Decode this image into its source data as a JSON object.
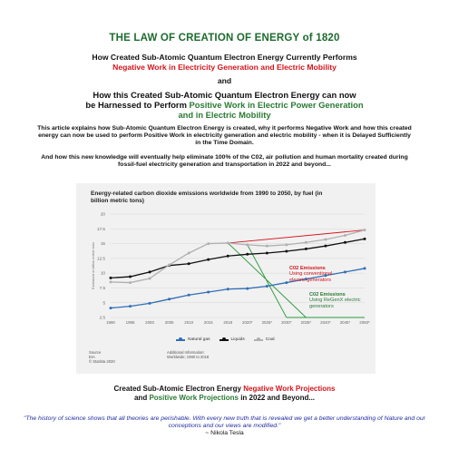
{
  "page": {
    "title": "THE LAW OF CREATION OF ENERGY of 1820",
    "heading1_line1": "How Created Sub-Atomic Quantum Electron Energy Currently Performs",
    "heading1_line2": "Negative Work in Electricity Generation and Electric Mobility",
    "and_word": "and",
    "heading2_line1": "How this Created Sub-Atomic Quantum Electron Energy can now",
    "heading2_line2_black": "be Harnessed to Perform ",
    "heading2_line2_green": "Positive Work in Electric Power Generation",
    "heading2_line3": "and in Electric Mobility",
    "paragraph1": "This article explains how Sub-Atomic Quantum Electron Energy is created, why it performs Negative Work and how this created energy can now be used to perform Positive Work in electricity generation and electric mobility - when it is Delayed Sufficiently in the Time Domain.",
    "paragraph2": "And how this new knowledge will eventually help eliminate 100% of the C02, air pollution and human mortality created during fossil-fuel electricity generation and transportation in 2022 and beyond...",
    "caption_line1_black": "Created Sub-Atomic Electron Energy ",
    "caption_line1_red": "Negative Work Projections",
    "caption_line2_black1": "and ",
    "caption_line2_green": "Positive Work Projections",
    "caption_line2_black2": " in 2022 and Beyond...",
    "quote_text": "\"The history of science shows that all theories are perishable. With every new truth that is revealed we get a better understanding of Nature and our conceptions and our views are modified.\"",
    "quote_author": "~ Nikola Tesla"
  },
  "chart_data": {
    "type": "line",
    "title": "Energy-related carbon dioxide emissions worldwide from 1990 to 2050, by fuel (in billion metric tons)",
    "ylabel": "Emissions in billion metric tons",
    "ylim": [
      2.5,
      20
    ],
    "yticks": [
      "20",
      "17.5",
      "15",
      "12.5",
      "10",
      "7.5",
      "5",
      "2.5"
    ],
    "categories": [
      "1990",
      "1995",
      "2000",
      "2005",
      "2010",
      "2015",
      "2018",
      "2020*",
      "2025*",
      "2030*",
      "2035*",
      "2040*",
      "2045*",
      "2050*"
    ],
    "series": [
      {
        "name": "Natural gas",
        "color": "#2f6fb6",
        "values": [
          4.1,
          4.4,
          4.9,
          5.6,
          6.3,
          6.8,
          7.3,
          7.4,
          7.8,
          8.4,
          9.0,
          9.6,
          10.2,
          10.8
        ]
      },
      {
        "name": "Liquids",
        "color": "#111111",
        "values": [
          9.2,
          9.4,
          10.2,
          11.3,
          11.6,
          12.3,
          12.9,
          13.2,
          13.4,
          13.7,
          14.1,
          14.6,
          15.2,
          15.8
        ]
      },
      {
        "name": "Coal",
        "color": "#b0b0b0",
        "values": [
          8.5,
          8.4,
          9.1,
          11.4,
          13.4,
          15.0,
          15.1,
          14.8,
          14.6,
          14.8,
          15.2,
          15.7,
          16.4,
          17.3
        ]
      }
    ],
    "legend_placement": "bottom",
    "source_label": "Source",
    "source_lines": [
      "EIA",
      "© Statista 2020"
    ],
    "additional_info_label": "Additional Information:",
    "additional_info_lines": [
      "Worldwide; 1990 to 2018"
    ],
    "overlay": {
      "red_label_line1": "C02  Emissions",
      "red_label_line2": "Using conventional",
      "red_label_line3": "electric generators",
      "green_label_line1": "C02  Emissions",
      "green_label_line2": "Using ReGenX electric",
      "green_label_line3": "generators",
      "red_color": "#d4141a",
      "green_color": "#2a9a3a"
    }
  }
}
